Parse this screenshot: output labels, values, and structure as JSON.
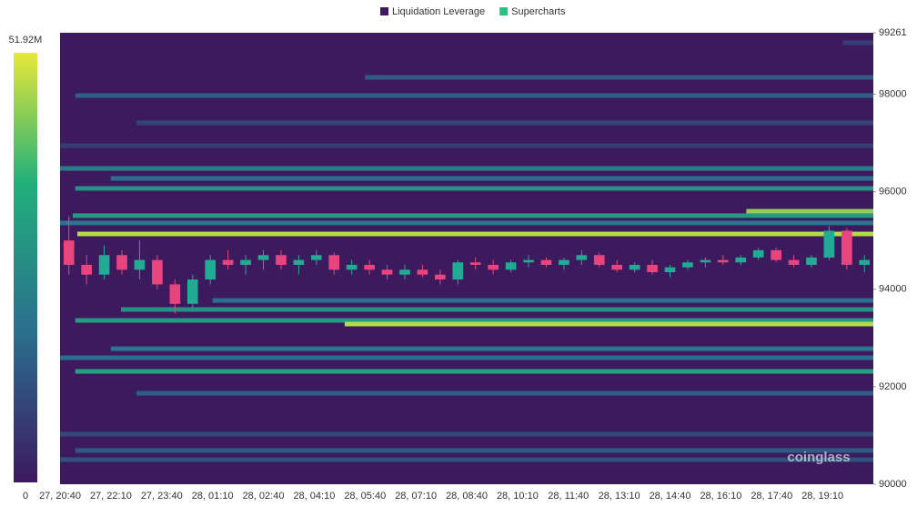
{
  "chart_data": {
    "type": "heatmap",
    "legend": [
      {
        "name": "Liquidation Leverage",
        "color": "#3d1a5e"
      },
      {
        "name": "Supercharts",
        "color": "#22c47e"
      }
    ],
    "watermark": "coinglass",
    "categories": [
      "27, 20:40",
      "27, 22:10",
      "27, 23:40",
      "28, 01:10",
      "28, 02:40",
      "28, 04:10",
      "28, 05:40",
      "28, 07:10",
      "28, 08:40",
      "28, 10:10",
      "28, 11:40",
      "28, 13:10",
      "28, 14:40",
      "28, 16:10",
      "28, 17:40",
      "28, 19:10"
    ],
    "ylim": [
      90000,
      99261
    ],
    "yticks": [
      90000,
      92000,
      94000,
      96000,
      98000,
      99261
    ],
    "zlim": [
      0,
      51.92
    ],
    "zticks": [
      0,
      {
        "value": 51.92,
        "label": "51.92M"
      }
    ],
    "levels": [
      {
        "price": 99055,
        "start": 15.4,
        "value": 8
      },
      {
        "price": 98346,
        "start": 6,
        "value": 14
      },
      {
        "price": 97973,
        "start": 0.3,
        "value": 15
      },
      {
        "price": 97413,
        "start": 1.5,
        "value": 9
      },
      {
        "price": 96945,
        "start": 0,
        "value": 7
      },
      {
        "price": 96479,
        "start": 0,
        "value": 22
      },
      {
        "price": 96273,
        "start": 1,
        "value": 18
      },
      {
        "price": 96068,
        "start": 0.3,
        "value": 28
      },
      {
        "price": 95600,
        "start": 13.5,
        "value": 45
      },
      {
        "price": 95510,
        "start": 0.25,
        "value": 30
      },
      {
        "price": 95360,
        "start": 0,
        "value": 20
      },
      {
        "price": 95134,
        "start": 0.34,
        "value": 48
      },
      {
        "price": 93770,
        "start": 3,
        "value": 18
      },
      {
        "price": 93585,
        "start": 1.2,
        "value": 28
      },
      {
        "price": 93360,
        "start": 0.3,
        "value": 30
      },
      {
        "price": 93286,
        "start": 5.6,
        "value": 48
      },
      {
        "price": 92780,
        "start": 1,
        "value": 20
      },
      {
        "price": 92595,
        "start": 0,
        "value": 18
      },
      {
        "price": 92315,
        "start": 0.3,
        "value": 32
      },
      {
        "price": 91867,
        "start": 1.5,
        "value": 15
      },
      {
        "price": 91027,
        "start": 0,
        "value": 10
      },
      {
        "price": 90691,
        "start": 0.3,
        "value": 14
      },
      {
        "price": 90504,
        "start": 0,
        "value": 12
      }
    ],
    "candles": [
      [
        95000,
        95500,
        94300,
        94500
      ],
      [
        94500,
        94700,
        94100,
        94300
      ],
      [
        94300,
        94900,
        94200,
        94700
      ],
      [
        94700,
        94800,
        94300,
        94400
      ],
      [
        94400,
        95000,
        94200,
        94600
      ],
      [
        94600,
        94700,
        94000,
        94100
      ],
      [
        94100,
        94200,
        93500,
        93700
      ],
      [
        93700,
        94300,
        93600,
        94200
      ],
      [
        94200,
        94700,
        94100,
        94600
      ],
      [
        94600,
        94800,
        94400,
        94500
      ],
      [
        94500,
        94700,
        94300,
        94600
      ],
      [
        94600,
        94800,
        94400,
        94700
      ],
      [
        94700,
        94800,
        94400,
        94500
      ],
      [
        94500,
        94700,
        94300,
        94600
      ],
      [
        94600,
        94800,
        94500,
        94700
      ],
      [
        94700,
        94750,
        94300,
        94400
      ],
      [
        94400,
        94600,
        94300,
        94500
      ],
      [
        94500,
        94600,
        94300,
        94400
      ],
      [
        94400,
        94500,
        94200,
        94300
      ],
      [
        94300,
        94500,
        94200,
        94400
      ],
      [
        94400,
        94500,
        94250,
        94300
      ],
      [
        94300,
        94400,
        94100,
        94200
      ],
      [
        94200,
        94600,
        94100,
        94550
      ],
      [
        94550,
        94650,
        94400,
        94500
      ],
      [
        94500,
        94600,
        94300,
        94400
      ],
      [
        94400,
        94600,
        94350,
        94550
      ],
      [
        94550,
        94700,
        94450,
        94600
      ],
      [
        94600,
        94650,
        94450,
        94500
      ],
      [
        94500,
        94650,
        94400,
        94600
      ],
      [
        94600,
        94800,
        94500,
        94700
      ],
      [
        94700,
        94750,
        94450,
        94500
      ],
      [
        94500,
        94600,
        94350,
        94400
      ],
      [
        94400,
        94550,
        94350,
        94500
      ],
      [
        94500,
        94600,
        94300,
        94350
      ],
      [
        94350,
        94500,
        94250,
        94450
      ],
      [
        94450,
        94600,
        94400,
        94550
      ],
      [
        94550,
        94650,
        94450,
        94600
      ],
      [
        94600,
        94700,
        94500,
        94550
      ],
      [
        94550,
        94700,
        94500,
        94650
      ],
      [
        94650,
        94850,
        94600,
        94800
      ],
      [
        94800,
        94850,
        94550,
        94600
      ],
      [
        94600,
        94700,
        94450,
        94500
      ],
      [
        94500,
        94700,
        94450,
        94650
      ],
      [
        94650,
        95300,
        94600,
        95200
      ],
      [
        95200,
        95250,
        94400,
        94500
      ],
      [
        94500,
        94700,
        94350,
        94600
      ]
    ],
    "up_color": "#22ab94",
    "down_color": "#e8457e"
  }
}
